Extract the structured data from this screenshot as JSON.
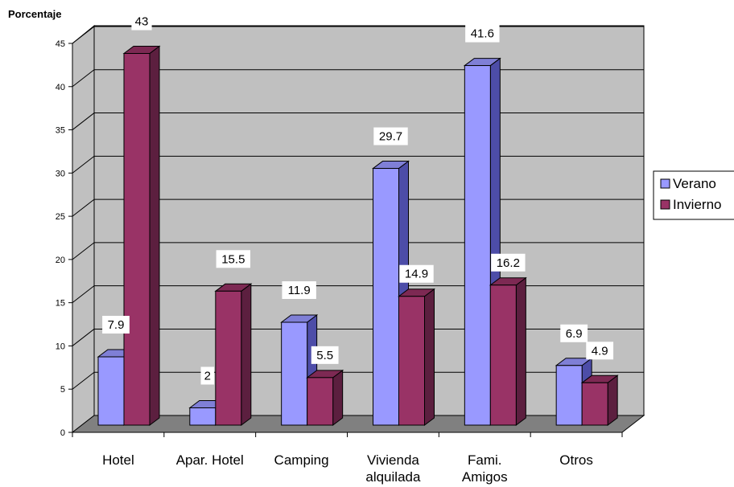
{
  "chart_data": {
    "type": "bar",
    "ylabel": "Porcentaje",
    "xlabel": "",
    "title": "",
    "ylim": [
      0,
      45
    ],
    "yticks": [
      "0",
      "5",
      "10",
      "15",
      "20",
      "25",
      "30",
      "35",
      "40",
      "45"
    ],
    "categories": [
      [
        "Hotel"
      ],
      [
        "Apar. Hotel"
      ],
      [
        "Camping"
      ],
      [
        "Vivienda",
        "alquilada"
      ],
      [
        "Fami.",
        "Amigos"
      ],
      [
        "Otros"
      ]
    ],
    "series": [
      {
        "name": "Verano",
        "values": [
          7.9,
          2,
          11.9,
          29.7,
          41.6,
          6.9
        ],
        "labels": [
          "7.9",
          "2",
          "11.9",
          "29.7",
          "41.6",
          "6.9"
        ]
      },
      {
        "name": "Invierno",
        "values": [
          43,
          15.5,
          5.5,
          14.9,
          16.2,
          4.9
        ],
        "labels": [
          "43",
          "15.5",
          "5.5",
          "14.9",
          "16.2",
          "4.9"
        ]
      }
    ],
    "grid": true,
    "legend_position": "right",
    "colors": {
      "verano_front": "#9999ff",
      "verano_top": "#7f7fd6",
      "verano_side": "#4d4da8",
      "invierno_front": "#993366",
      "invierno_top": "#7d2953",
      "invierno_side": "#5c1f3f",
      "wall": "#c0c0c0",
      "floor": "#808080"
    }
  }
}
